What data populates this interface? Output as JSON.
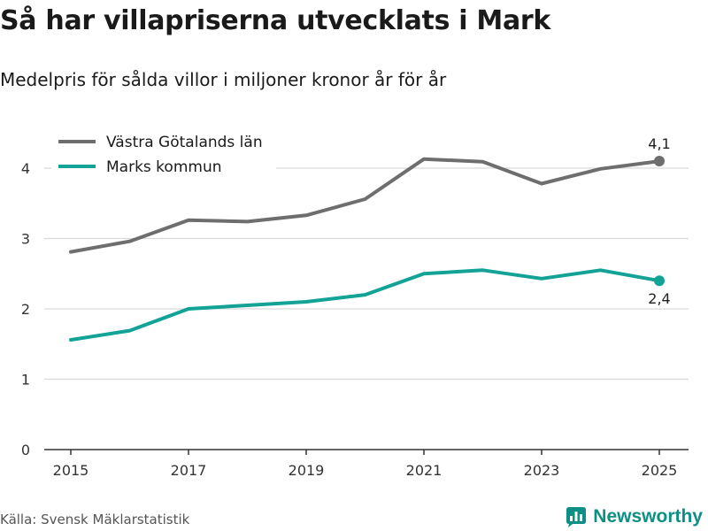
{
  "header": {
    "title": "Så har villapriserna utvecklats i Mark",
    "subtitle": "Medelpris för sålda villor i miljoner kronor år för år"
  },
  "footer": {
    "source": "Källa: Svensk Mäklarstatistik",
    "brand": "Newsworthy"
  },
  "colors": {
    "series_1": "#6e6e6e",
    "series_2": "#12a296",
    "brand": "#0e8f85",
    "grid": "#d9d9d9",
    "axis": "#333333"
  },
  "chart_data": {
    "type": "line",
    "title": "Så har villapriserna utvecklats i Mark",
    "subtitle": "Medelpris för sålda villor i miljoner kronor år för år",
    "xlabel": "",
    "ylabel": "",
    "x": [
      2015,
      2016,
      2017,
      2018,
      2019,
      2020,
      2021,
      2022,
      2023,
      2024,
      2025
    ],
    "xticks": [
      2015,
      2017,
      2019,
      2021,
      2023,
      2025
    ],
    "yticks": [
      0,
      1,
      2,
      3,
      4
    ],
    "ylim": [
      0,
      4.4
    ],
    "xlim": [
      2014.5,
      2025.5
    ],
    "grid": true,
    "legend_position": "top-left",
    "series": [
      {
        "name": "Västra Götalands län",
        "color_key": "series_1",
        "values": [
          2.81,
          2.96,
          3.26,
          3.24,
          3.33,
          3.56,
          4.13,
          4.09,
          3.78,
          3.99,
          4.1
        ],
        "end_label": "4,1",
        "end_label_side": "above"
      },
      {
        "name": "Marks kommun",
        "color_key": "series_2",
        "values": [
          1.56,
          1.69,
          2.0,
          2.05,
          2.1,
          2.2,
          2.5,
          2.55,
          2.43,
          2.55,
          2.4
        ],
        "end_label": "2,4",
        "end_label_side": "below"
      }
    ]
  }
}
